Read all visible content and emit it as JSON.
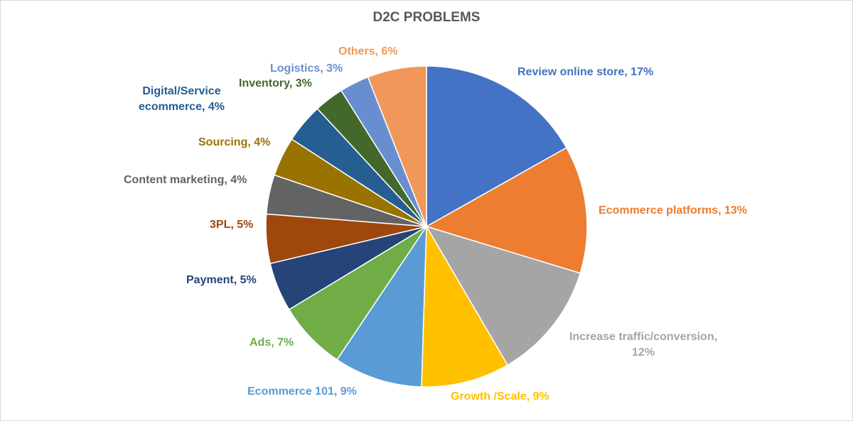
{
  "chart_data": {
    "type": "pie",
    "title": "D2C PROBLEMS",
    "slices": [
      {
        "category": "Review online store",
        "value": 17,
        "label": "Review online store, 17%",
        "color": "#4472C4"
      },
      {
        "category": "Ecommerce platforms",
        "value": 13,
        "label": "Ecommerce platforms, 13%",
        "color": "#ED7D31"
      },
      {
        "category": "Increase traffic/conversion",
        "value": 12,
        "label_lines": [
          "Increase traffic/conversion,",
          "12%"
        ],
        "color": "#A5A5A5"
      },
      {
        "category": "Growth /Scale",
        "value": 9,
        "label": "Growth /Scale, 9%",
        "color": "#FFC000"
      },
      {
        "category": "Ecommerce 101",
        "value": 9,
        "label": "Ecommerce 101, 9%",
        "color": "#5B9BD5"
      },
      {
        "category": "Ads",
        "value": 7,
        "label": "Ads, 7%",
        "color": "#70AD47"
      },
      {
        "category": "Payment",
        "value": 5,
        "label": "Payment, 5%",
        "color": "#264478"
      },
      {
        "category": "3PL",
        "value": 5,
        "label": "3PL, 5%",
        "color": "#9E480E"
      },
      {
        "category": "Content marketing",
        "value": 4,
        "label": "Content marketing, 4%",
        "color": "#636363"
      },
      {
        "category": "Sourcing",
        "value": 4,
        "label": "Sourcing, 4%",
        "color": "#997300"
      },
      {
        "category": "Digital/Service ecommerce",
        "value": 4,
        "label_lines": [
          "Digital/Service",
          "ecommerce, 4%"
        ],
        "color": "#255E91"
      },
      {
        "category": "Inventory",
        "value": 3,
        "label": "Inventory, 3%",
        "color": "#43682B"
      },
      {
        "category": "Logistics",
        "value": 3,
        "label": "Logistics, 3%",
        "color": "#698ED0"
      },
      {
        "category": "Others",
        "value": 6,
        "label": "Others, 6%",
        "color": "#F1975A"
      }
    ]
  }
}
